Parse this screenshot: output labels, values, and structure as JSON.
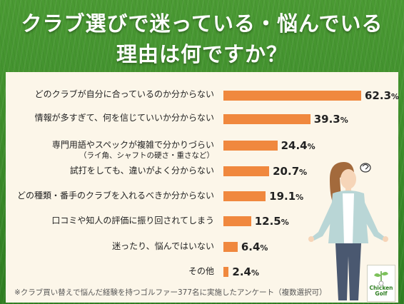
{
  "title": {
    "line1": "クラブ選びで迷っている・悩んでいる",
    "line2": "理由は何ですか？"
  },
  "chart_data": {
    "type": "bar",
    "orientation": "horizontal",
    "categories": [
      {
        "label": "どのクラブが自分に合っているのか分からない",
        "sublabel": ""
      },
      {
        "label": "情報が多すぎて、何を信じていいか分からない",
        "sublabel": ""
      },
      {
        "label": "専門用語やスペックが複雑で分かりづらい",
        "sublabel": "（ライ角、シャフトの硬さ・重さなど）"
      },
      {
        "label": "試打をしても、違いがよく分からない",
        "sublabel": ""
      },
      {
        "label": "どの種類・番手のクラブを入れるべきか分からない",
        "sublabel": ""
      },
      {
        "label": "口コミや知人の評価に振り回されてしまう",
        "sublabel": ""
      },
      {
        "label": "迷ったり、悩んではいない",
        "sublabel": ""
      },
      {
        "label": "その他",
        "sublabel": ""
      }
    ],
    "values": [
      62.3,
      39.3,
      24.4,
      20.7,
      19.1,
      12.5,
      6.4,
      2.4
    ],
    "unit": "%",
    "xlim": [
      0,
      100
    ],
    "bar_color": "#f0883e"
  },
  "footnote": "※クラブ買い替えで悩んだ経験を持つゴルファー377名に実施したアンケート（複数選択可）",
  "logo": {
    "line1": "Chicken",
    "line2": "Golf"
  },
  "colors": {
    "panel": "#fcf6e9",
    "grass": "#3d8d2a",
    "bar": "#f0883e"
  }
}
